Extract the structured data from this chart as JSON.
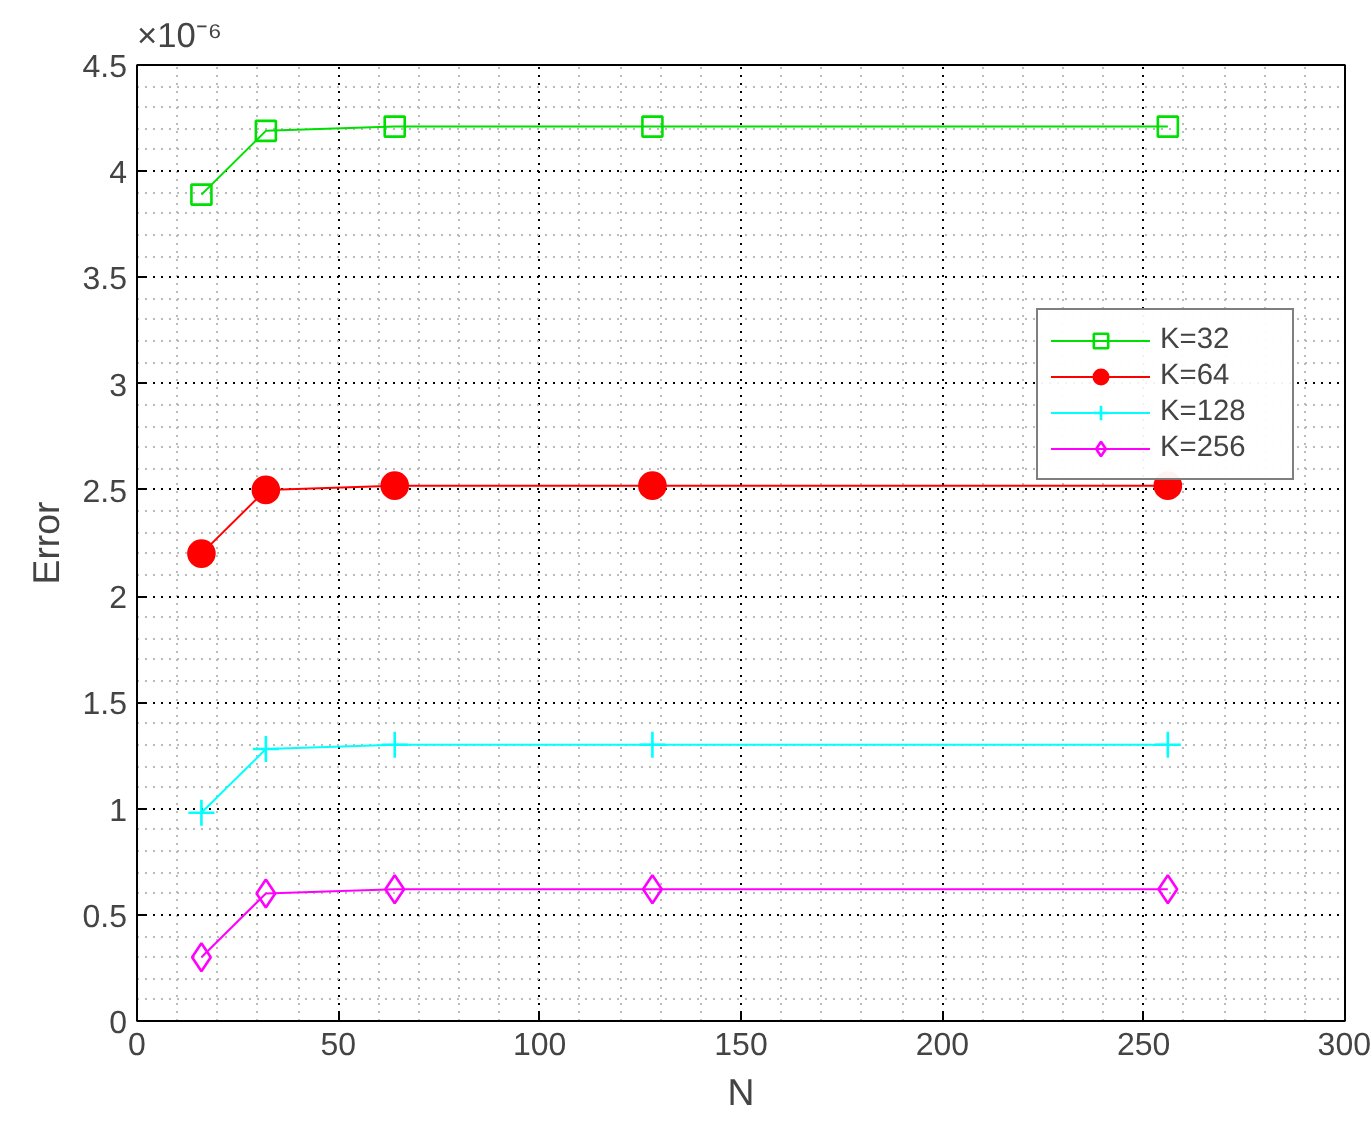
{
  "chart_data": {
    "type": "line",
    "xlabel": "N",
    "ylabel": "Error",
    "annotations": [
      "×10⁻⁶"
    ],
    "x": [
      16,
      32,
      64,
      128,
      256
    ],
    "series": [
      {
        "name": "K=32",
        "color": "#00e000",
        "marker": "square",
        "values": [
          3.89,
          4.19,
          4.21,
          4.21,
          4.21
        ]
      },
      {
        "name": "K=64",
        "color": "#ff0000",
        "marker": "circle",
        "values": [
          2.2,
          2.5,
          2.52,
          2.52,
          2.52
        ]
      },
      {
        "name": "K=128",
        "color": "#00ffff",
        "marker": "cross",
        "values": [
          0.98,
          1.28,
          1.3,
          1.3,
          1.3
        ]
      },
      {
        "name": "K=256",
        "color": "#ff00ff",
        "marker": "diamond",
        "values": [
          0.3,
          0.6,
          0.62,
          0.62,
          0.62
        ]
      }
    ],
    "xlim": [
      0,
      300
    ],
    "xticks": [
      0,
      50,
      100,
      150,
      200,
      250,
      300
    ],
    "ylim": [
      0,
      4.5
    ],
    "yticks": [
      0,
      0.5,
      1,
      1.5,
      2,
      2.5,
      3,
      3.5,
      4,
      4.5
    ],
    "grid": true,
    "legend": "top right",
    "line_style": "solid"
  }
}
